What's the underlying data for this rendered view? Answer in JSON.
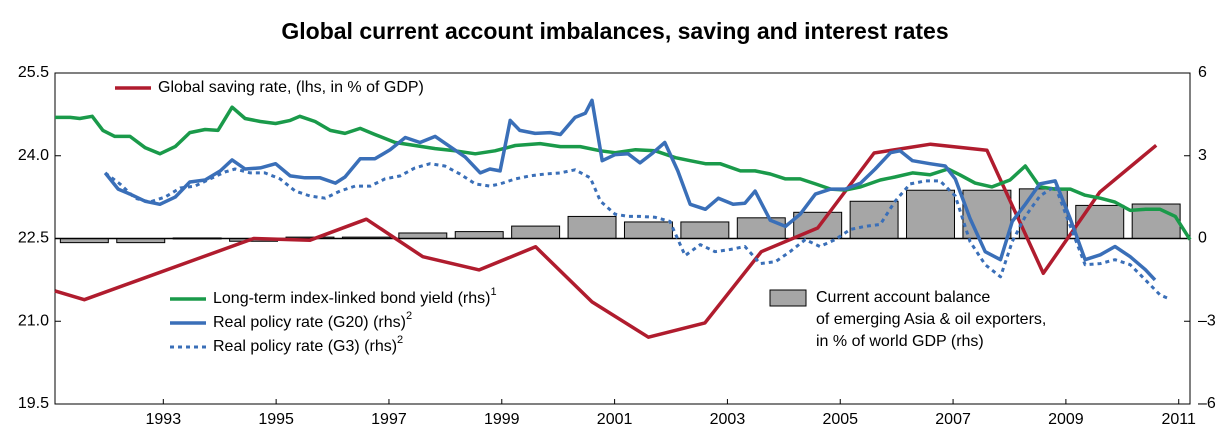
{
  "chart_data": {
    "type": "line",
    "title": "Global current account imbalances, saving and interest rates",
    "xlim": [
      1991.08,
      2011.2
    ],
    "xticks": [
      1993,
      1995,
      1997,
      1999,
      2001,
      2003,
      2005,
      2007,
      2009,
      2011
    ],
    "ylim": [
      19.5,
      25.5
    ],
    "yticks": [
      19.5,
      {
        "value": 21,
        "label": "21.0"
      },
      22.5,
      {
        "value": 24,
        "label": "24.0"
      },
      25.5
    ],
    "y2lim": [
      -6,
      6
    ],
    "y2ticks": [
      {
        "value": -6,
        "label": "–6"
      },
      {
        "value": -3,
        "label": "–3"
      },
      0,
      3,
      6
    ],
    "series": [
      {
        "name": "Current account balance",
        "name_lines": [
          "of emerging Asia & oil exporters,",
          "in % of world GDP (rhs)"
        ],
        "type": "bar",
        "axis": "y2",
        "color": "#a6a6a6",
        "x": [
          1991.6,
          1992.6,
          1993.6,
          1994.6,
          1995.6,
          1996.6,
          1997.6,
          1998.6,
          1999.6,
          2000.6,
          2001.6,
          2002.6,
          2003.6,
          2004.6,
          2005.6,
          2006.6,
          2007.6,
          2008.6,
          2009.6,
          2010.6
        ],
        "values": [
          -0.15,
          -0.15,
          0.02,
          -0.1,
          0.05,
          0.05,
          0.2,
          0.25,
          0.45,
          0.8,
          0.6,
          0.6,
          0.75,
          0.95,
          1.35,
          1.75,
          1.75,
          1.8,
          1.2,
          1.25
        ]
      },
      {
        "name": "Global saving rate, (lhs, in % of GDP)",
        "type": "line",
        "color": "#b01c2e",
        "x": [
          1991.08,
          1991.6,
          1992.6,
          1993.6,
          1994.6,
          1995.6,
          1996.6,
          1997.6,
          1998.6,
          1999.6,
          2000.6,
          2001.6,
          2002.6,
          2003.6,
          2004.6,
          2005.6,
          2006.6,
          2007.6,
          2008.6,
          2009.6,
          2010.6
        ],
        "values": [
          21.55,
          21.39,
          21.76,
          22.13,
          22.5,
          22.47,
          22.85,
          22.17,
          21.93,
          22.35,
          21.35,
          20.71,
          20.97,
          22.26,
          22.69,
          24.05,
          24.21,
          24.1,
          21.87,
          23.34,
          24.19
        ]
      },
      {
        "name": "Long-term index-linked bond yield (rhs)",
        "footnote": "1",
        "type": "line",
        "axis": "y2",
        "color": "#1a9a4a",
        "x": [
          1991.08,
          1991.35,
          1991.52,
          1991.74,
          1991.93,
          1992.14,
          1992.41,
          1992.68,
          1992.94,
          1993.21,
          1993.47,
          1993.74,
          1993.97,
          1994.22,
          1994.45,
          1994.72,
          1994.99,
          1995.25,
          1995.42,
          1995.69,
          1995.96,
          1996.22,
          1996.49,
          1996.75,
          1997.11,
          1997.46,
          1997.82,
          1998.17,
          1998.53,
          1998.88,
          1999.24,
          1999.68,
          2000.04,
          2000.39,
          2000.75,
          2001.01,
          2001.37,
          2001.72,
          2002.08,
          2002.34,
          2002.61,
          2002.87,
          2003.23,
          2003.49,
          2003.76,
          2004.03,
          2004.29,
          2004.56,
          2004.83,
          2005.09,
          2005.36,
          2005.71,
          2005.97,
          2006.28,
          2006.59,
          2006.91,
          2007.12,
          2007.39,
          2007.69,
          2008.01,
          2008.28,
          2008.54,
          2008.81,
          2009.08,
          2009.34,
          2009.61,
          2009.87,
          2010.14,
          2010.41,
          2010.67,
          2010.94,
          2011.2
        ],
        "values": [
          4.39,
          4.39,
          4.35,
          4.43,
          3.92,
          3.7,
          3.7,
          3.29,
          3.07,
          3.33,
          3.84,
          3.95,
          3.92,
          4.76,
          4.35,
          4.24,
          4.17,
          4.28,
          4.43,
          4.24,
          3.92,
          3.81,
          3.99,
          3.77,
          3.48,
          3.37,
          3.26,
          3.18,
          3.07,
          3.18,
          3.37,
          3.44,
          3.33,
          3.33,
          3.18,
          3.11,
          3.22,
          3.18,
          2.93,
          2.82,
          2.71,
          2.71,
          2.45,
          2.45,
          2.34,
          2.16,
          2.16,
          1.98,
          1.79,
          1.76,
          1.87,
          2.12,
          2.23,
          2.38,
          2.31,
          2.52,
          2.31,
          2.01,
          1.87,
          2.12,
          2.63,
          1.87,
          1.79,
          1.79,
          1.57,
          1.46,
          1.32,
          1.02,
          1.06,
          1.06,
          0.8,
          -0.04
        ]
      },
      {
        "name": "Real policy rate (G20) (rhs)",
        "footnote": "2",
        "type": "line",
        "axis": "y2",
        "color": "#3a6fb8",
        "x": [
          1991.97,
          1992.2,
          1992.41,
          1992.68,
          1992.94,
          1993.21,
          1993.47,
          1993.74,
          1994.01,
          1994.22,
          1994.45,
          1994.72,
          1994.99,
          1995.25,
          1995.51,
          1995.78,
          1996.05,
          1996.22,
          1996.49,
          1996.75,
          1997.02,
          1997.29,
          1997.55,
          1997.82,
          1998.08,
          1998.35,
          1998.62,
          1998.79,
          1998.97,
          1999.15,
          1999.32,
          1999.59,
          1999.86,
          2000.04,
          2000.3,
          2000.48,
          2000.6,
          2000.78,
          2001.01,
          2001.24,
          2001.45,
          2001.66,
          2001.89,
          2002.12,
          2002.34,
          2002.61,
          2002.84,
          2003.1,
          2003.31,
          2003.49,
          2003.76,
          2004.03,
          2004.29,
          2004.56,
          2004.83,
          2005.09,
          2005.36,
          2005.62,
          2005.89,
          2006.06,
          2006.28,
          2006.59,
          2006.86,
          2007.04,
          2007.3,
          2007.57,
          2007.84,
          2008.05,
          2008.28,
          2008.54,
          2008.81,
          2009.08,
          2009.34,
          2009.61,
          2009.87,
          2010.14,
          2010.41,
          2010.58
        ],
        "values": [
          2.38,
          1.79,
          1.61,
          1.35,
          1.24,
          1.5,
          2.05,
          2.12,
          2.45,
          2.85,
          2.52,
          2.56,
          2.71,
          2.27,
          2.2,
          2.2,
          2.01,
          2.23,
          2.89,
          2.89,
          3.22,
          3.66,
          3.48,
          3.7,
          3.33,
          2.96,
          2.38,
          2.52,
          2.45,
          4.28,
          3.92,
          3.81,
          3.84,
          3.77,
          4.39,
          4.54,
          5.01,
          2.82,
          3.04,
          3.07,
          2.74,
          3.07,
          3.48,
          2.45,
          1.24,
          1.06,
          1.46,
          1.24,
          1.28,
          1.72,
          0.66,
          0.44,
          0.88,
          1.61,
          1.79,
          1.79,
          2.01,
          2.52,
          3.11,
          3.18,
          2.82,
          2.71,
          2.63,
          2.16,
          0.73,
          -0.48,
          -0.77,
          0.62,
          1.24,
          1.98,
          2.09,
          0.7,
          -0.77,
          -0.59,
          -0.29,
          -0.66,
          -1.13,
          -1.5
        ]
      },
      {
        "name": "Real policy rate (G3) (rhs)",
        "footnote": "2",
        "type": "line",
        "axis": "y2",
        "color": "#3a6fb8",
        "dashed": true,
        "x": [
          1991.97,
          1992.23,
          1992.5,
          1992.76,
          1993.03,
          1993.3,
          1993.56,
          1993.83,
          1994.09,
          1994.27,
          1994.54,
          1994.8,
          1995.07,
          1995.34,
          1995.6,
          1995.87,
          1996.13,
          1996.4,
          1996.67,
          1996.93,
          1997.2,
          1997.46,
          1997.73,
          1997.99,
          1998.26,
          1998.53,
          1998.79,
          1998.97,
          1999.24,
          1999.5,
          1999.77,
          2000.04,
          2000.3,
          2000.57,
          2000.75,
          2001.01,
          2001.24,
          2001.45,
          2001.72,
          2001.98,
          2002.25,
          2002.52,
          2002.78,
          2003.05,
          2003.31,
          2003.58,
          2003.85,
          2004.11,
          2004.38,
          2004.64,
          2004.91,
          2005.18,
          2005.44,
          2005.71,
          2005.97,
          2006.24,
          2006.51,
          2006.77,
          2007.04,
          2007.3,
          2007.57,
          2007.84,
          2008.05,
          2008.28,
          2008.54,
          2008.81,
          2009.08,
          2009.34,
          2009.61,
          2009.87,
          2010.14,
          2010.41,
          2010.67,
          2010.85
        ],
        "values": [
          2.38,
          1.98,
          1.46,
          1.32,
          1.5,
          1.83,
          1.9,
          2.16,
          2.41,
          2.52,
          2.38,
          2.38,
          2.16,
          1.72,
          1.54,
          1.46,
          1.72,
          1.9,
          1.9,
          2.16,
          2.27,
          2.56,
          2.71,
          2.63,
          2.34,
          1.98,
          1.9,
          1.98,
          2.16,
          2.27,
          2.34,
          2.38,
          2.49,
          2.2,
          1.35,
          0.88,
          0.8,
          0.8,
          0.77,
          0.62,
          -0.62,
          -0.22,
          -0.48,
          -0.4,
          -0.29,
          -0.91,
          -0.84,
          -0.48,
          -0.04,
          -0.29,
          -0.04,
          0.33,
          0.44,
          0.51,
          1.35,
          1.98,
          2.09,
          2.09,
          1.54,
          -0.11,
          -0.95,
          -1.39,
          -0.11,
          0.8,
          1.54,
          1.9,
          0.44,
          -0.95,
          -0.91,
          -0.77,
          -0.95,
          -1.5,
          -2.05,
          -2.2
        ]
      }
    ]
  }
}
